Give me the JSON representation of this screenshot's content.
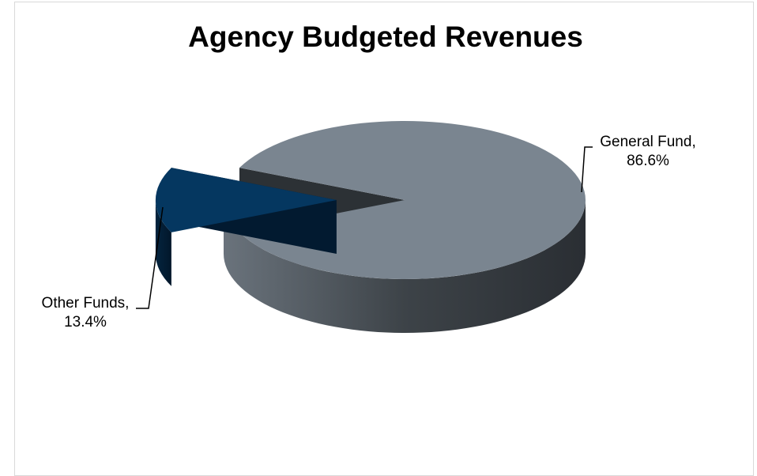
{
  "chart_data": {
    "type": "pie",
    "title": "Agency Budgeted Revenues",
    "slices": [
      {
        "label": "General Fund",
        "value": 86.6,
        "display": "86.6%",
        "color": "#7a8590"
      },
      {
        "label": "Other Funds",
        "value": 13.4,
        "display": "13.4%",
        "color": "#053760"
      }
    ],
    "legend": "none",
    "style": "3d-exploded"
  }
}
